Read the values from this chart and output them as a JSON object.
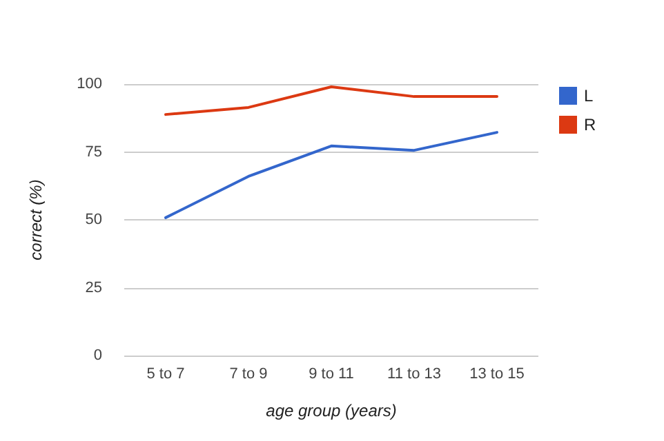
{
  "chart_data": {
    "type": "line",
    "xlabel": "age group (years)",
    "ylabel": "correct (%)",
    "categories": [
      "5 to 7",
      "7 to 9",
      "9 to 11",
      "11 to 13",
      "13 to 15"
    ],
    "series": [
      {
        "name": "L",
        "color": "#3366cc",
        "values": [
          50.8,
          66,
          77.2,
          75.6,
          82.2
        ]
      },
      {
        "name": "R",
        "color": "#dc3912",
        "values": [
          88.8,
          91.4,
          99,
          95.4,
          95.4
        ]
      }
    ],
    "ylim": [
      0,
      100
    ],
    "yticks": [
      0,
      25,
      50,
      75,
      100
    ],
    "grid": "y",
    "legend": "right",
    "marker": "none",
    "line_style": "solid"
  }
}
